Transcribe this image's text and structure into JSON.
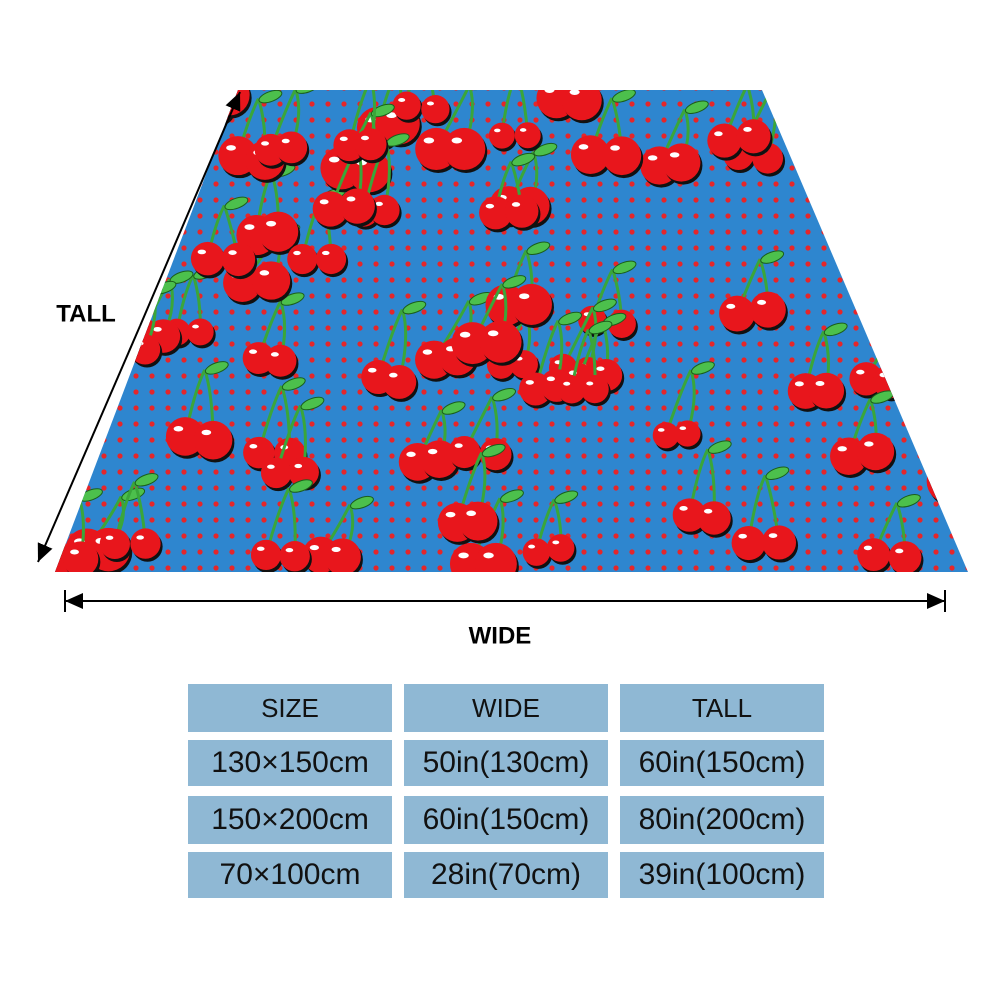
{
  "labels": {
    "tall": "TALL",
    "wide": "WIDE"
  },
  "table": {
    "header": [
      "SIZE",
      "WIDE",
      "TALL"
    ],
    "rows": [
      [
        "130×150cm",
        "50in(130cm)",
        "60in(150cm)"
      ],
      [
        "150×200cm",
        "60in(150cm)",
        "80in(200cm)"
      ],
      [
        "70×100cm",
        "28in(70cm)",
        "39in(100cm)"
      ]
    ]
  }
}
